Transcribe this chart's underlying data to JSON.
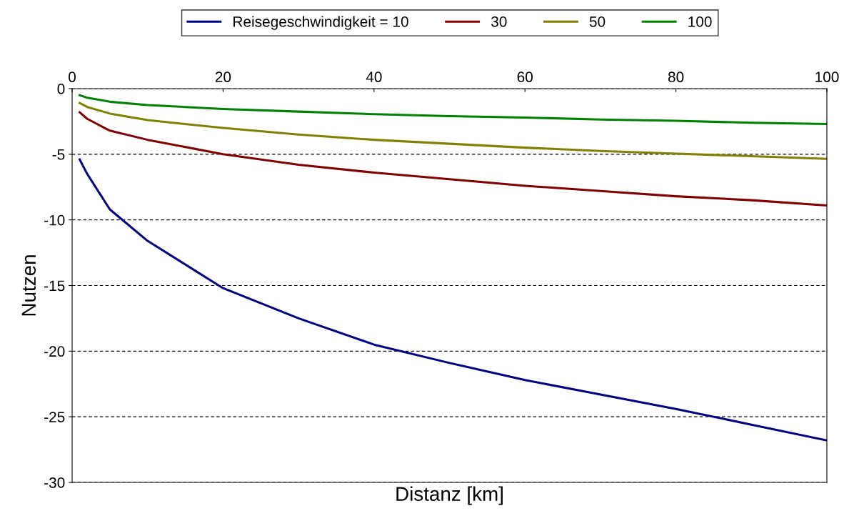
{
  "chart_data": {
    "type": "line",
    "xlabel": "Distanz [km]",
    "ylabel": "Nutzen",
    "xlim": [
      0,
      100
    ],
    "xticks": [
      0,
      20,
      40,
      60,
      80,
      100
    ],
    "ylim": [
      -30,
      0
    ],
    "yticks": [
      0,
      -5,
      -10,
      -15,
      -20,
      -25,
      -30
    ],
    "grid": "y",
    "legend": "top",
    "line_style": "solid",
    "marker": "none",
    "x": [
      1,
      2,
      5,
      10,
      20,
      30,
      40,
      50,
      60,
      70,
      80,
      90,
      100
    ],
    "series": [
      {
        "name": "Reisegeschwindigkeit = 10",
        "color": "#000080",
        "values": [
          -5.4,
          -6.5,
          -9.2,
          -11.6,
          -15.2,
          -17.5,
          -19.5,
          -20.9,
          -22.2,
          -23.3,
          -24.4,
          -25.6,
          -26.8
        ]
      },
      {
        "name": "30",
        "color": "#800000",
        "values": [
          -1.8,
          -2.3,
          -3.2,
          -3.9,
          -5.0,
          -5.8,
          -6.4,
          -6.9,
          -7.4,
          -7.8,
          -8.2,
          -8.5,
          -8.9
        ]
      },
      {
        "name": "50",
        "color": "#808000",
        "values": [
          -1.1,
          -1.4,
          -1.9,
          -2.4,
          -3.0,
          -3.5,
          -3.9,
          -4.2,
          -4.5,
          -4.75,
          -4.95,
          -5.15,
          -5.35
        ]
      },
      {
        "name": "100",
        "color": "#008000",
        "values": [
          -0.5,
          -0.7,
          -1.0,
          -1.25,
          -1.55,
          -1.75,
          -1.95,
          -2.1,
          -2.2,
          -2.35,
          -2.45,
          -2.6,
          -2.7
        ]
      }
    ]
  }
}
